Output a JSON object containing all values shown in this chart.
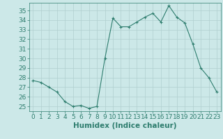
{
  "x": [
    0,
    1,
    2,
    3,
    4,
    5,
    6,
    7,
    8,
    9,
    10,
    11,
    12,
    13,
    14,
    15,
    16,
    17,
    18,
    19,
    20,
    21,
    22,
    23
  ],
  "y": [
    27.7,
    27.5,
    27.0,
    26.5,
    25.5,
    25.0,
    25.1,
    24.8,
    25.0,
    30.0,
    34.2,
    33.3,
    33.3,
    33.8,
    34.3,
    34.7,
    33.8,
    35.5,
    34.3,
    33.7,
    31.5,
    29.0,
    28.0,
    26.5
  ],
  "line_color": "#2e7d6e",
  "marker": "+",
  "bg_color": "#cce8e8",
  "grid_color": "#b0cfcf",
  "xlabel": "Humidex (Indice chaleur)",
  "ylim": [
    24.5,
    35.8
  ],
  "xlim": [
    -0.5,
    23.5
  ],
  "yticks": [
    25,
    26,
    27,
    28,
    29,
    30,
    31,
    32,
    33,
    34,
    35
  ],
  "xticks": [
    0,
    1,
    2,
    3,
    4,
    5,
    6,
    7,
    8,
    9,
    10,
    11,
    12,
    13,
    14,
    15,
    16,
    17,
    18,
    19,
    20,
    21,
    22,
    23
  ],
  "tick_color": "#2e7d6e",
  "label_color": "#2e7d6e",
  "font_size": 6.5,
  "xlabel_fontsize": 7.5
}
